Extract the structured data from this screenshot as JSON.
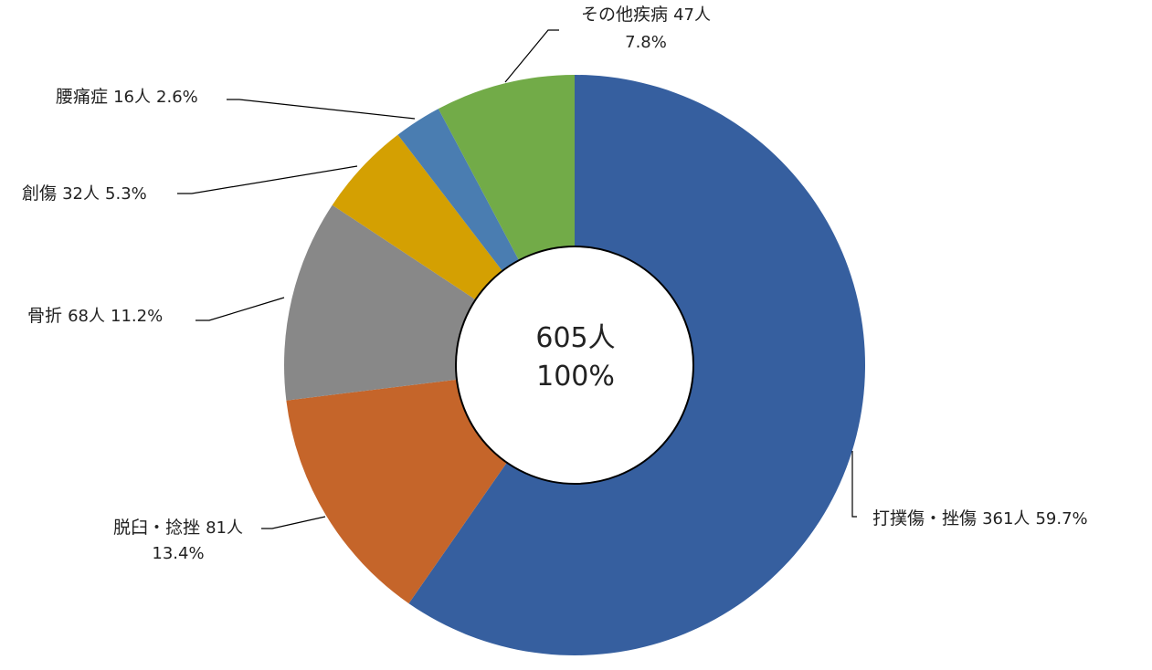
{
  "chart_data": {
    "type": "pie",
    "variant": "donut",
    "legend": "none",
    "center": {
      "total": "605人",
      "percent": "100%"
    },
    "series": [
      {
        "name": "打撲傷・挫傷",
        "value": 361,
        "count_label": "361人",
        "percent": "59.7%",
        "color": "#365F9F"
      },
      {
        "name": "脱臼・捻挫",
        "value": 81,
        "count_label": "81人",
        "percent": "13.4%",
        "color": "#C5652A"
      },
      {
        "name": "骨折",
        "value": 68,
        "count_label": "68人",
        "percent": "11.2%",
        "color": "#888888"
      },
      {
        "name": "創傷",
        "value": 32,
        "count_label": "32人",
        "percent": "5.3%",
        "color": "#D4A002"
      },
      {
        "name": "腰痛症",
        "value": 16,
        "count_label": "16人",
        "percent": "2.6%",
        "color": "#4A7DB1"
      },
      {
        "name": "その他疾病",
        "value": 47,
        "count_label": "47人",
        "percent": "7.8%",
        "color": "#72AB48"
      }
    ]
  }
}
